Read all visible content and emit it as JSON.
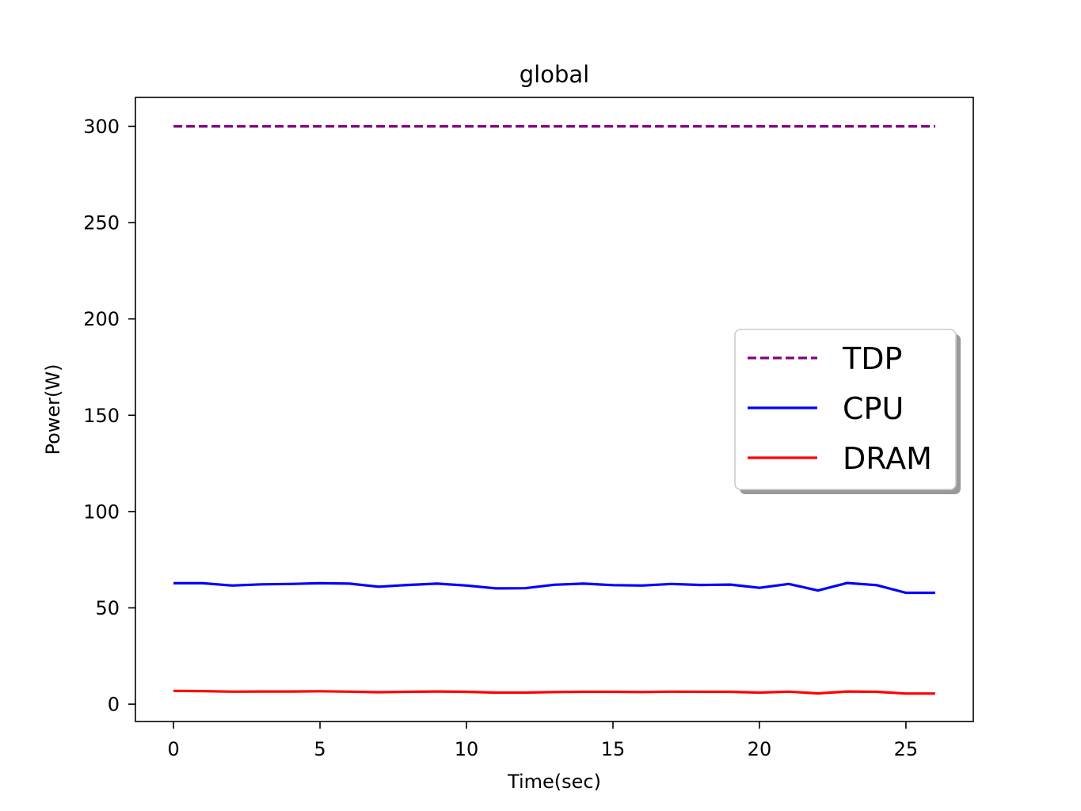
{
  "chart_data": {
    "type": "line",
    "title": "global",
    "xlabel": "Time(sec)",
    "ylabel": "Power(W)",
    "xlim": [
      -1.3,
      27.3
    ],
    "ylim": [
      -9,
      315
    ],
    "xticks": [
      0,
      5,
      10,
      15,
      20,
      25
    ],
    "yticks": [
      0,
      50,
      100,
      150,
      200,
      250,
      300
    ],
    "grid": false,
    "legend_position": "center-right",
    "x": [
      0,
      1,
      2,
      3,
      4,
      5,
      6,
      7,
      8,
      9,
      10,
      11,
      12,
      13,
      14,
      15,
      16,
      17,
      18,
      19,
      20,
      21,
      22,
      23,
      24,
      25,
      26
    ],
    "series": [
      {
        "name": "TDP",
        "color": "#800080",
        "style": "dashed",
        "values": [
          300,
          300,
          300,
          300,
          300,
          300,
          300,
          300,
          300,
          300,
          300,
          300,
          300,
          300,
          300,
          300,
          300,
          300,
          300,
          300,
          300,
          300,
          300,
          300,
          300,
          300,
          300
        ]
      },
      {
        "name": "CPU",
        "color": "#0000ff",
        "style": "solid",
        "values": [
          62.8,
          62.8,
          61.6,
          62.2,
          62.4,
          62.8,
          62.6,
          61.0,
          61.9,
          62.6,
          61.6,
          60.1,
          60.2,
          62.0,
          62.6,
          61.8,
          61.6,
          62.4,
          61.9,
          62.1,
          60.4,
          62.4,
          59.0,
          62.9,
          61.8,
          57.8,
          57.8
        ]
      },
      {
        "name": "DRAM",
        "color": "#ff0000",
        "style": "solid",
        "values": [
          6.9,
          6.8,
          6.5,
          6.6,
          6.6,
          6.7,
          6.5,
          6.2,
          6.4,
          6.6,
          6.4,
          6.0,
          6.0,
          6.3,
          6.4,
          6.4,
          6.3,
          6.5,
          6.4,
          6.4,
          6.0,
          6.5,
          5.6,
          6.6,
          6.4,
          5.5,
          5.5
        ]
      }
    ]
  }
}
